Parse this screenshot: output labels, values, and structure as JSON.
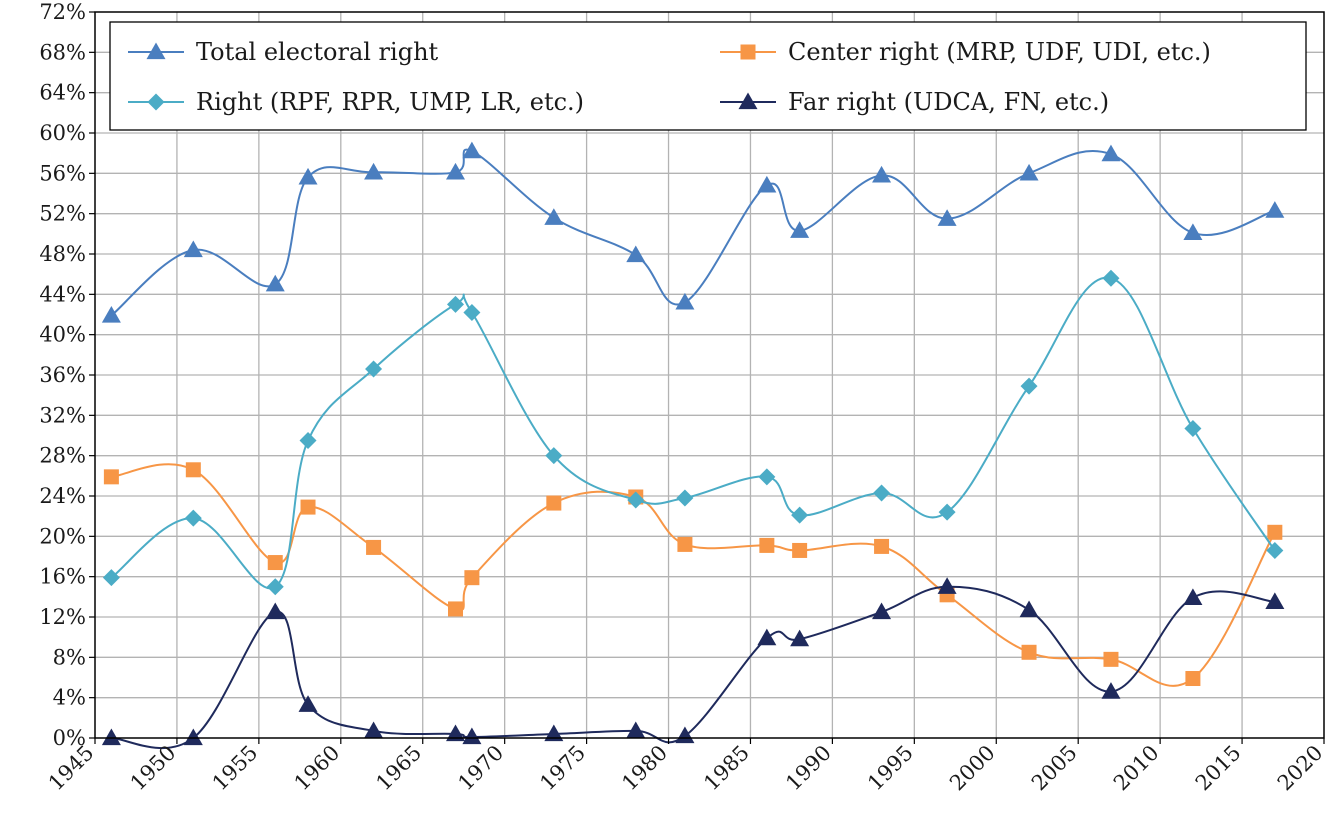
{
  "chart_data": {
    "type": "line",
    "title": "",
    "xlabel": "",
    "ylabel": "",
    "xlim": [
      1945,
      2020
    ],
    "ylim": [
      0,
      72
    ],
    "x_ticks": [
      "1945",
      "1950",
      "1955",
      "1960",
      "1965",
      "1970",
      "1975",
      "1980",
      "1985",
      "1990",
      "1995",
      "2000",
      "2005",
      "2010",
      "2015",
      "2020"
    ],
    "y_ticks": [
      "0%",
      "4%",
      "8%",
      "12%",
      "16%",
      "20%",
      "24%",
      "28%",
      "32%",
      "36%",
      "40%",
      "44%",
      "48%",
      "52%",
      "56%",
      "60%",
      "64%",
      "68%",
      "72%"
    ],
    "grid": true,
    "legend_position": "top",
    "series": [
      {
        "name": "Total electoral right",
        "color": "#4a7ebf",
        "marker": "triangle",
        "x": [
          1946,
          1951,
          1956,
          1958,
          1962,
          1967,
          1968,
          1973,
          1978,
          1981,
          1986,
          1988,
          1993,
          1997,
          2002,
          2007,
          2012,
          2017
        ],
        "y": [
          41.9,
          48.4,
          45.0,
          55.6,
          56.1,
          56.1,
          58.2,
          51.6,
          47.9,
          43.2,
          54.8,
          50.3,
          55.8,
          51.5,
          56.0,
          57.9,
          50.1,
          52.3
        ]
      },
      {
        "name": "Center right (MRP, UDF, UDI, etc.)",
        "color": "#f79646",
        "marker": "square",
        "x": [
          1946,
          1951,
          1956,
          1958,
          1962,
          1967,
          1968,
          1973,
          1978,
          1981,
          1986,
          1988,
          1993,
          1997,
          2002,
          2007,
          2012,
          2017
        ],
        "y": [
          25.9,
          26.6,
          17.4,
          22.9,
          18.9,
          12.8,
          15.9,
          23.3,
          23.9,
          19.2,
          19.1,
          18.6,
          19.0,
          14.2,
          8.5,
          7.8,
          5.9,
          20.4
        ]
      },
      {
        "name": "Right (RPF, RPR, UMP, LR, etc.)",
        "color": "#4bacc6",
        "marker": "diamond",
        "x": [
          1946,
          1951,
          1956,
          1958,
          1962,
          1967,
          1968,
          1973,
          1978,
          1981,
          1986,
          1988,
          1993,
          1997,
          2002,
          2007,
          2012,
          2017
        ],
        "y": [
          15.9,
          21.8,
          15.0,
          29.5,
          36.6,
          43.0,
          42.2,
          28.0,
          23.6,
          23.8,
          25.9,
          22.1,
          24.3,
          22.4,
          34.9,
          45.6,
          30.7,
          18.6
        ]
      },
      {
        "name": "Far right (UDCA, FN, etc.)",
        "color": "#1f2a5c",
        "marker": "triangle",
        "x": [
          1946,
          1951,
          1956,
          1958,
          1962,
          1967,
          1968,
          1973,
          1978,
          1981,
          1986,
          1988,
          1993,
          1997,
          2002,
          2007,
          2012,
          2017
        ],
        "y": [
          0.0,
          0.0,
          12.5,
          3.3,
          0.7,
          0.4,
          0.1,
          0.4,
          0.7,
          0.2,
          9.9,
          9.8,
          12.5,
          15.0,
          12.7,
          4.6,
          13.9,
          13.5
        ]
      }
    ]
  }
}
